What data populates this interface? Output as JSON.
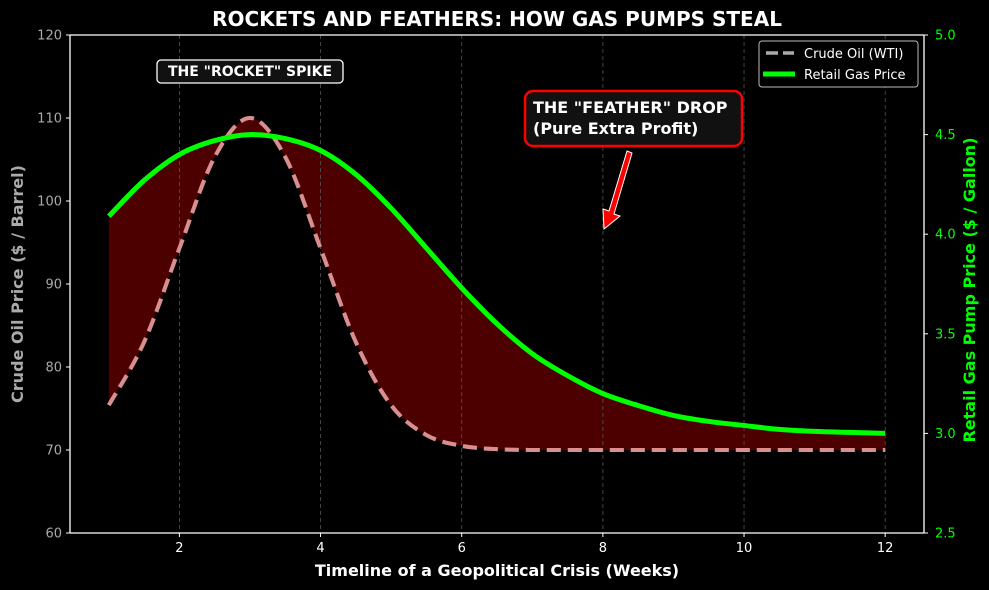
{
  "chart_data": {
    "type": "line",
    "title": "ROCKETS AND FEATHERS: HOW GAS PUMPS STEAL",
    "xlabel": "Timeline of a Geopolitical Crisis (Weeks)",
    "ylabel": "Crude Oil Price ($ / Barrel)",
    "ylabel_right": "Retail Gas Pump Price ($ / Gallon)",
    "xlim": [
      0.45,
      12.55
    ],
    "ylim": [
      60,
      120
    ],
    "ylim_right": [
      2.5,
      5.0
    ],
    "x_ticks": [
      2,
      4,
      6,
      8,
      10,
      12
    ],
    "y_ticks": [
      60,
      70,
      80,
      90,
      100,
      110,
      120
    ],
    "y_ticks_right": [
      "2.5",
      "3.0",
      "3.5",
      "4.0",
      "4.5",
      "5.0"
    ],
    "grid": "vertical dashed",
    "legend_position": "upper right",
    "x": [
      1,
      1.5,
      2,
      2.5,
      3,
      3.5,
      4,
      4.5,
      5,
      5.5,
      6,
      6.5,
      7,
      7.5,
      8,
      8.5,
      9,
      9.5,
      10,
      10.5,
      11,
      11.5,
      12
    ],
    "series": [
      {
        "name": "Crude Oil (WTI)",
        "axis": "left",
        "style": "dashed",
        "color": "#aaaaaa",
        "values": [
          75.4,
          83.0,
          94.3,
          105.3,
          110.0,
          105.3,
          94.3,
          83.0,
          75.4,
          71.8,
          70.5,
          70.1,
          70.0,
          70.0,
          70.0,
          70.0,
          70.0,
          70.0,
          70.0,
          70.0,
          70.0,
          70.0,
          70.0
        ]
      },
      {
        "name": "Retail Gas Price",
        "axis": "right",
        "style": "solid",
        "color": "#00ff00",
        "values": [
          4.09,
          4.27,
          4.4,
          4.47,
          4.5,
          4.48,
          4.42,
          4.3,
          4.13,
          3.93,
          3.73,
          3.55,
          3.4,
          3.29,
          3.2,
          3.14,
          3.09,
          3.06,
          3.04,
          3.02,
          3.01,
          3.005,
          3.0
        ]
      }
    ],
    "fill_between": {
      "color": "#4d0000",
      "description": "Area between retail gas (scaled) and crude oil"
    },
    "annotations": [
      {
        "text": "THE \"ROCKET\" SPIKE",
        "x": 3,
        "y": 115
      },
      {
        "text_lines": [
          "THE \"FEATHER\" DROP",
          "(Pure Extra Profit)"
        ],
        "x": 7,
        "y": 108,
        "arrow_to": {
          "x": 8,
          "y": 96
        },
        "border_color": "#ff0000"
      }
    ]
  },
  "legend": {
    "items": [
      {
        "label": "Crude Oil (WTI)"
      },
      {
        "label": "Retail Gas Price"
      }
    ]
  }
}
